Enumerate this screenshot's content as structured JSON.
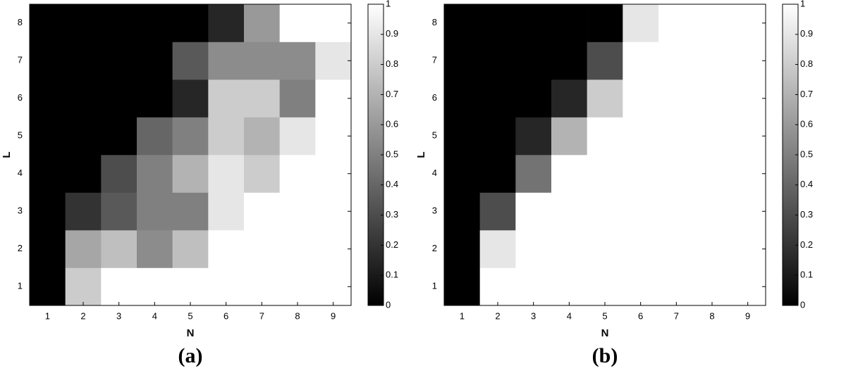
{
  "chart_data": [
    {
      "type": "heatmap",
      "label": "(a)",
      "xlabel": "N",
      "ylabel": "L",
      "colormap": "gray",
      "x": [
        1,
        2,
        3,
        4,
        5,
        6,
        7,
        8,
        9
      ],
      "y": [
        1,
        2,
        3,
        4,
        5,
        6,
        7,
        8
      ],
      "xlim": [
        0.5,
        9.5
      ],
      "ylim": [
        0.5,
        8.5
      ],
      "xticks": [
        1,
        2,
        3,
        4,
        5,
        6,
        7,
        8,
        9
      ],
      "yticks": [
        1,
        2,
        3,
        4,
        5,
        6,
        7,
        8
      ],
      "values": [
        [
          0,
          0.8,
          1,
          1,
          1,
          1,
          1,
          1,
          1
        ],
        [
          0,
          0.65,
          0.75,
          0.55,
          0.75,
          1,
          1,
          1,
          1
        ],
        [
          0,
          0.2,
          0.35,
          0.5,
          0.5,
          0.9,
          1,
          1,
          1
        ],
        [
          0,
          0,
          0.3,
          0.5,
          0.7,
          0.9,
          0.8,
          1,
          1
        ],
        [
          0,
          0,
          0,
          0.4,
          0.5,
          0.8,
          0.7,
          0.9,
          1
        ],
        [
          0,
          0,
          0,
          0,
          0.15,
          0.8,
          0.8,
          0.5,
          1
        ],
        [
          0,
          0,
          0,
          0,
          0.35,
          0.55,
          0.55,
          0.55,
          0.9
        ],
        [
          0,
          0,
          0,
          0,
          0,
          0.15,
          0.6,
          1,
          1
        ]
      ],
      "clim": [
        0,
        1
      ],
      "cticks": [
        0,
        0.1,
        0.2,
        0.3,
        0.4,
        0.5,
        0.6,
        0.7,
        0.8,
        0.9,
        1
      ]
    },
    {
      "type": "heatmap",
      "label": "(b)",
      "xlabel": "N",
      "ylabel": "L",
      "colormap": "gray",
      "x": [
        1,
        2,
        3,
        4,
        5,
        6,
        7,
        8,
        9
      ],
      "y": [
        1,
        2,
        3,
        4,
        5,
        6,
        7,
        8
      ],
      "xlim": [
        0.5,
        9.5
      ],
      "ylim": [
        0.5,
        8.5
      ],
      "xticks": [
        1,
        2,
        3,
        4,
        5,
        6,
        7,
        8,
        9
      ],
      "yticks": [
        1,
        2,
        3,
        4,
        5,
        6,
        7,
        8
      ],
      "values": [
        [
          0,
          1,
          1,
          1,
          1,
          1,
          1,
          1,
          1
        ],
        [
          0,
          0.9,
          1,
          1,
          1,
          1,
          1,
          1,
          1
        ],
        [
          0,
          0.3,
          1,
          1,
          1,
          1,
          1,
          1,
          1
        ],
        [
          0,
          0,
          0.45,
          1,
          1,
          1,
          1,
          1,
          1
        ],
        [
          0,
          0,
          0.15,
          0.7,
          1,
          1,
          1,
          1,
          1
        ],
        [
          0,
          0,
          0,
          0.15,
          0.8,
          1,
          1,
          1,
          1
        ],
        [
          0,
          0,
          0,
          0,
          0.3,
          1,
          1,
          1,
          1
        ],
        [
          0,
          0,
          0,
          0,
          0,
          0.9,
          1,
          1,
          1
        ]
      ],
      "clim": [
        0,
        1
      ],
      "cticks": [
        0,
        0.1,
        0.2,
        0.3,
        0.4,
        0.5,
        0.6,
        0.7,
        0.8,
        0.9,
        1
      ]
    }
  ]
}
